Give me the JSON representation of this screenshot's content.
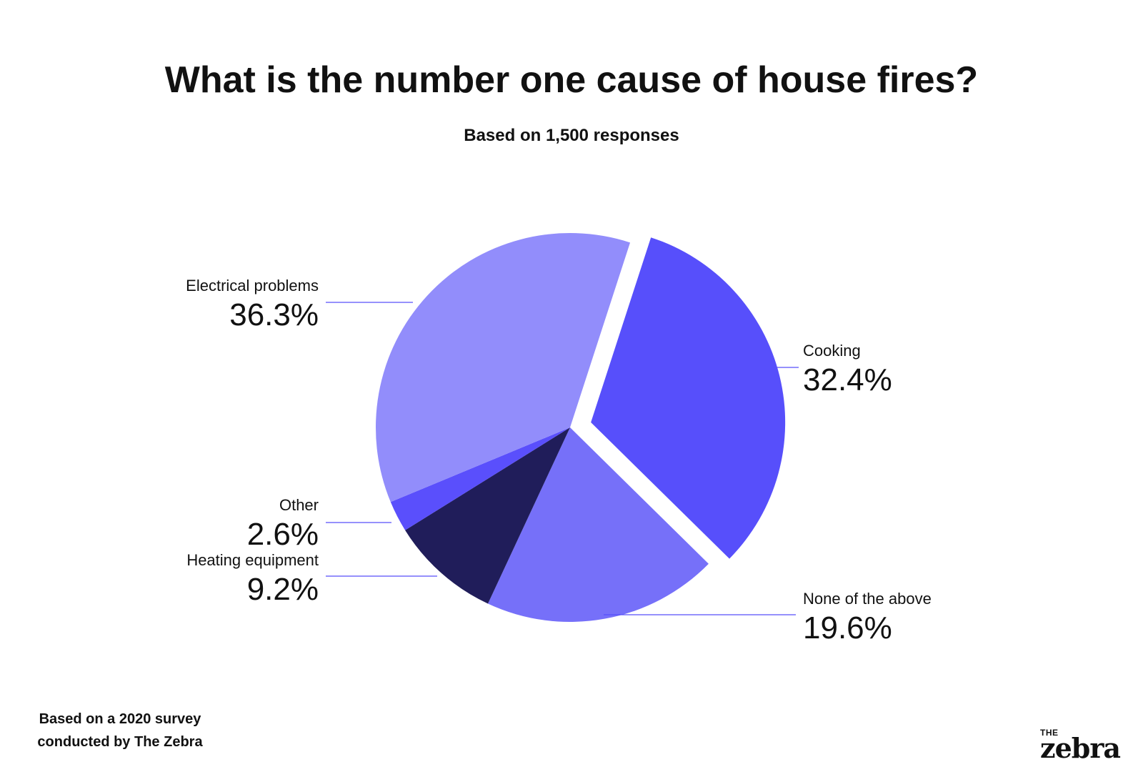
{
  "header": {
    "title": "What is the number one cause of house fires?",
    "subtitle": "Based on 1,500 responses"
  },
  "chart_data": {
    "type": "pie",
    "title": "What is the number one cause of house fires?",
    "subtitle": "Based on 1,500 responses",
    "slices": [
      {
        "label": "Cooking",
        "value": 32.4,
        "value_text": "32.4%",
        "color": "#574FFB",
        "exploded": true,
        "label_side": "right"
      },
      {
        "label": "None of the above",
        "value": 19.6,
        "value_text": "19.6%",
        "color": "#7670F9",
        "exploded": false,
        "label_side": "right"
      },
      {
        "label": "Heating equipment",
        "value": 9.2,
        "value_text": "9.2%",
        "color": "#201D5A",
        "exploded": false,
        "label_side": "left"
      },
      {
        "label": "Other",
        "value": 2.6,
        "value_text": "2.6%",
        "color": "#5A4FFC",
        "exploded": false,
        "label_side": "left"
      },
      {
        "label": "Electrical problems",
        "value": 36.3,
        "value_text": "36.3%",
        "color": "#928DFB",
        "exploded": false,
        "label_side": "left"
      }
    ],
    "leader_line_color": "#574FFB",
    "legend": "none"
  },
  "footnote": {
    "line1": "Based on a 2020 survey",
    "line2": "conducted by The Zebra"
  },
  "logo": {
    "small": "THE",
    "big": "zebra"
  }
}
